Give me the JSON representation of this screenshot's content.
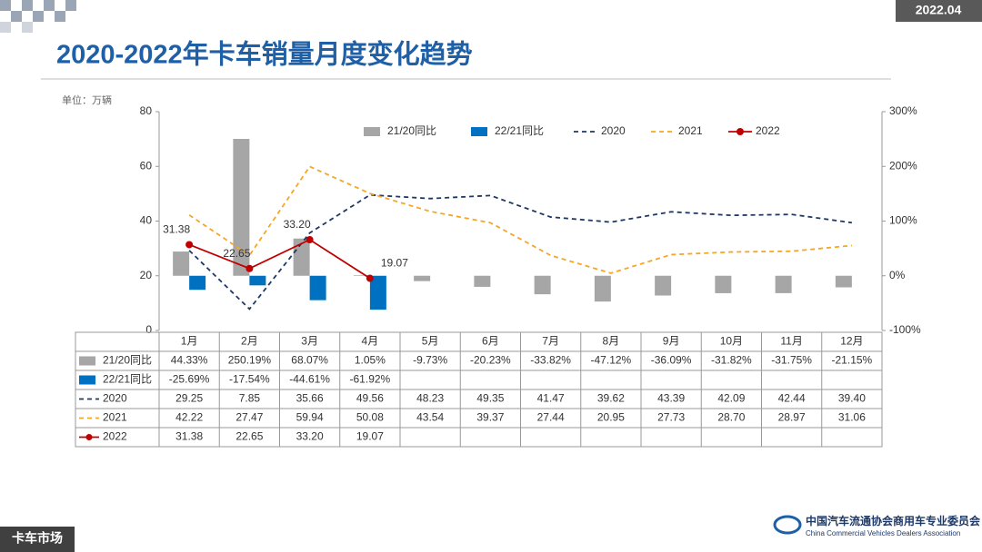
{
  "header": {
    "date": "2022.04",
    "title": "2020-2022年卡车销量月度变化趋势",
    "unit": "单位：万辆"
  },
  "footer": {
    "section": "卡车市场",
    "org_cn": "中国汽车流通协会商用车专业委员会",
    "org_en": "China Commercial Vehicles Dealers Association"
  },
  "chart_data": {
    "type": "bar-line",
    "categories": [
      "1月",
      "2月",
      "3月",
      "4月",
      "5月",
      "6月",
      "7月",
      "8月",
      "9月",
      "10月",
      "11月",
      "12月"
    ],
    "ylim": [
      0,
      80
    ],
    "yticks": [
      0,
      20,
      40,
      60,
      80
    ],
    "y2lim": [
      -100,
      300
    ],
    "y2ticks": [
      {
        "value": -100,
        "label": "-100%"
      },
      {
        "value": 0,
        "label": "0%"
      },
      {
        "value": 100,
        "label": "100%"
      },
      {
        "value": 200,
        "label": "200%"
      },
      {
        "value": 300,
        "label": "300%"
      }
    ],
    "series": [
      {
        "name": "21/20同比",
        "kind": "bar",
        "axis": "y2",
        "color": "#a6a6a6",
        "values": [
          44.33,
          250.19,
          68.07,
          1.05,
          -9.73,
          -20.23,
          -33.82,
          -47.12,
          -36.09,
          -31.82,
          -31.75,
          -21.15
        ],
        "value_labels": [
          "44.33%",
          "250.19%",
          "68.07%",
          "1.05%",
          "-9.73%",
          "-20.23%",
          "-33.82%",
          "-47.12%",
          "-36.09%",
          "-31.82%",
          "-31.75%",
          "-21.15%"
        ]
      },
      {
        "name": "22/21同比",
        "kind": "bar",
        "axis": "y2",
        "color": "#0070c0",
        "values": [
          -25.69,
          -17.54,
          -44.61,
          -61.92,
          null,
          null,
          null,
          null,
          null,
          null,
          null,
          null
        ],
        "value_labels": [
          "-25.69%",
          "-17.54%",
          "-44.61%",
          "-61.92%",
          null,
          null,
          null,
          null,
          null,
          null,
          null,
          null
        ]
      },
      {
        "name": "2020",
        "kind": "dash",
        "color": "#1f3864",
        "values": [
          29.25,
          7.85,
          35.66,
          49.56,
          48.23,
          49.35,
          41.47,
          39.62,
          43.39,
          42.09,
          42.44,
          39.4
        ],
        "value_labels": [
          "29.25",
          "7.85",
          "35.66",
          "49.56",
          "48.23",
          "49.35",
          "41.47",
          "39.62",
          "43.39",
          "42.09",
          "42.44",
          "39.40"
        ]
      },
      {
        "name": "2021",
        "kind": "dash",
        "color": "#f5a623",
        "values": [
          42.22,
          27.47,
          59.94,
          50.08,
          43.54,
          39.37,
          27.44,
          20.95,
          27.73,
          28.7,
          28.97,
          31.06
        ],
        "value_labels": [
          "42.22",
          "27.47",
          "59.94",
          "50.08",
          "43.54",
          "39.37",
          "27.44",
          "20.95",
          "27.73",
          "28.70",
          "28.97",
          "31.06"
        ]
      },
      {
        "name": "2022",
        "kind": "marker-line",
        "color": "#c00000",
        "values": [
          31.38,
          22.65,
          33.2,
          19.07,
          null,
          null,
          null,
          null,
          null,
          null,
          null,
          null
        ],
        "value_labels": [
          "31.38",
          "22.65",
          "33.20",
          "19.07",
          null,
          null,
          null,
          null,
          null,
          null,
          null,
          null
        ]
      }
    ]
  }
}
